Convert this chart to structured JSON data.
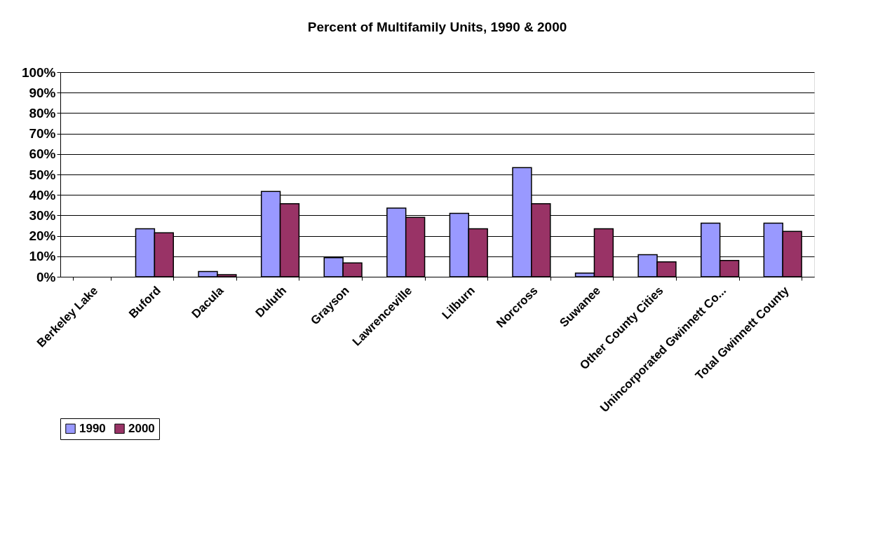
{
  "chart_data": {
    "type": "bar",
    "title": "Percent of Multifamily Units, 1990 & 2000",
    "categories": [
      "Berkeley Lake",
      "Buford",
      "Dacula",
      "Duluth",
      "Grayson",
      "Lawrenceville",
      "Lilburn",
      "Norcross",
      "Suwanee",
      "Other County Cities",
      "Unincorporated Gwinnett Co...",
      "Total Gwinnett County"
    ],
    "series": [
      {
        "name": "1990",
        "color": "#9999ff",
        "values": [
          null,
          23.5,
          2.6,
          41.7,
          9.3,
          33.6,
          31,
          53.3,
          1.8,
          10.8,
          26.2,
          26.2
        ]
      },
      {
        "name": "2000",
        "color": "#993366",
        "values": [
          null,
          21.5,
          1,
          35.7,
          6.8,
          29,
          23.5,
          35.7,
          23.5,
          7.3,
          8,
          22.2
        ]
      }
    ],
    "ylim": [
      0,
      100
    ],
    "yticks": [
      {
        "value": 0,
        "label": "0%"
      },
      {
        "value": 10,
        "label": "10%"
      },
      {
        "value": 20,
        "label": "20%"
      },
      {
        "value": 30,
        "label": "30%"
      },
      {
        "value": 40,
        "label": "40%"
      },
      {
        "value": 50,
        "label": "50%"
      },
      {
        "value": 60,
        "label": "60%"
      },
      {
        "value": 70,
        "label": "70%"
      },
      {
        "value": 80,
        "label": "80%"
      },
      {
        "value": 90,
        "label": "90%"
      },
      {
        "value": 100,
        "label": "100%"
      }
    ],
    "grid": "y",
    "legend": "bottom"
  }
}
